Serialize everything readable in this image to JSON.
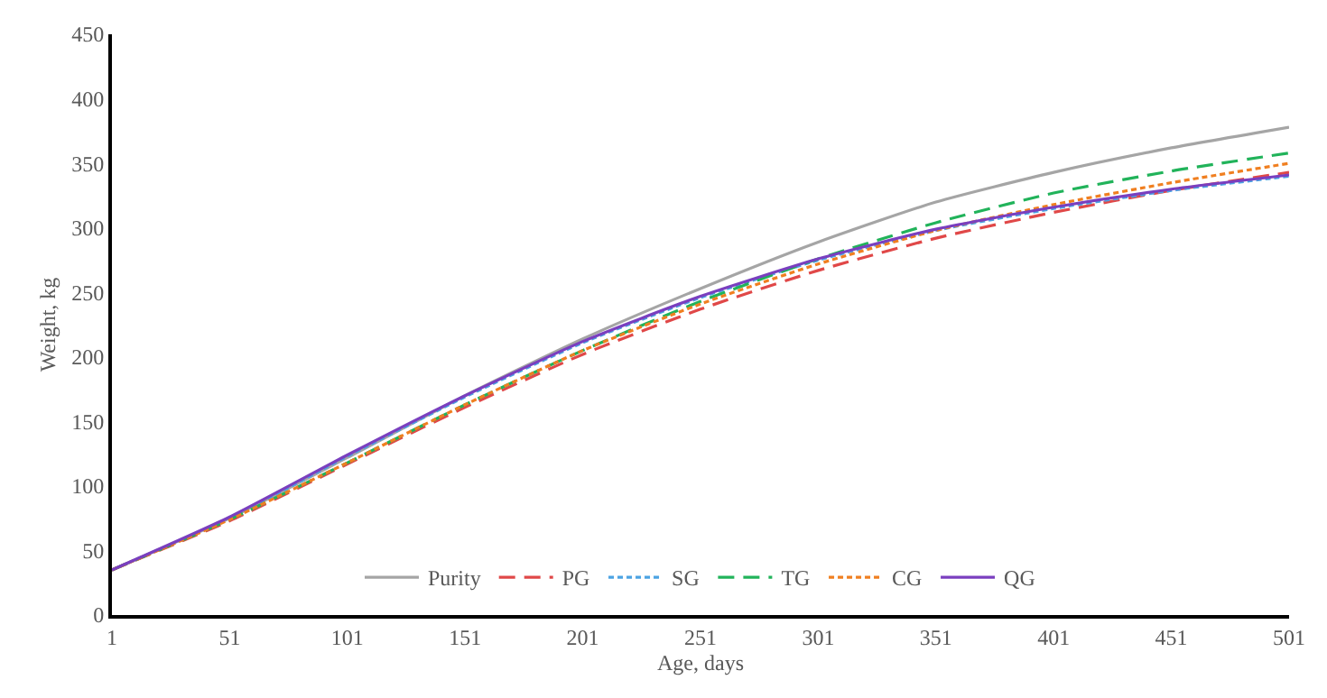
{
  "chart_data": {
    "type": "line",
    "xlabel": "Age, days",
    "ylabel": "Weight, kg",
    "x": [
      1,
      51,
      101,
      151,
      201,
      251,
      301,
      351,
      401,
      451,
      501
    ],
    "xlim": [
      1,
      501
    ],
    "xticks": [
      1,
      51,
      101,
      151,
      201,
      251,
      301,
      351,
      401,
      451,
      501
    ],
    "ylim": [
      0,
      450
    ],
    "yticks": [
      0,
      50,
      100,
      150,
      200,
      250,
      300,
      350,
      400,
      450
    ],
    "legend": "bottom",
    "marker": "none",
    "series": [
      {
        "name": "Purity",
        "color": "#a5a5a5",
        "line_style": "solid",
        "values": [
          35,
          75,
          122,
          170,
          214,
          253,
          289,
          320,
          343,
          362,
          378
        ]
      },
      {
        "name": "PG",
        "color": "#e04848",
        "line_style": "dashed",
        "values": [
          35,
          73,
          117,
          161,
          202,
          237,
          267,
          292,
          312,
          329,
          343
        ]
      },
      {
        "name": "SG",
        "color": "#4ba3e3",
        "line_style": "dotted",
        "values": [
          35,
          75,
          123,
          169,
          211,
          246,
          275,
          298,
          315,
          329,
          340
        ]
      },
      {
        "name": "TG",
        "color": "#21b35a",
        "line_style": "dashed",
        "values": [
          35,
          74,
          118,
          163,
          205,
          243,
          276,
          304,
          327,
          344,
          358
        ]
      },
      {
        "name": "CG",
        "color": "#f07f20",
        "line_style": "dotted",
        "values": [
          35,
          74,
          118,
          163,
          205,
          241,
          272,
          298,
          318,
          335,
          350
        ]
      },
      {
        "name": "QG",
        "color": "#7a3fbf",
        "line_style": "solid",
        "values": [
          35,
          76,
          124,
          170,
          212,
          247,
          276,
          299,
          316,
          330,
          341
        ]
      }
    ]
  }
}
